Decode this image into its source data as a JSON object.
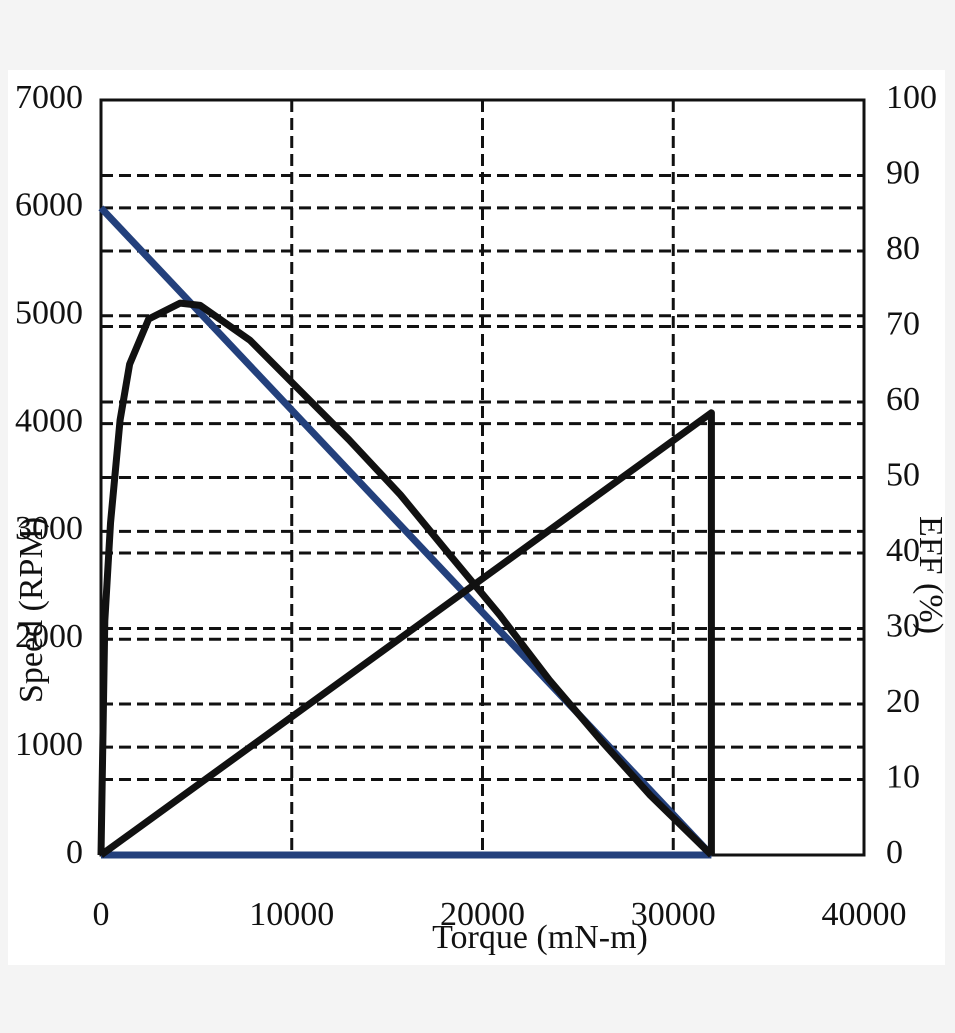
{
  "chart_data": {
    "type": "line",
    "x_label": "Torque (mN-m)",
    "y_label": "Speed (RPM)",
    "y2_label": "EFF (%)",
    "xlim": [
      0,
      40000
    ],
    "xticks": [
      0,
      10000,
      20000,
      30000,
      40000
    ],
    "ylim": [
      0,
      7000
    ],
    "yticks": [
      0,
      1000,
      2000,
      3000,
      4000,
      5000,
      6000,
      7000
    ],
    "y2lim": [
      0,
      100
    ],
    "y2ticks": [
      0,
      10,
      20,
      30,
      40,
      50,
      60,
      70,
      80,
      90,
      100
    ],
    "grid": "dashed",
    "series": [
      {
        "color": "#23407c",
        "x": [
          0,
          32000
        ],
        "values": [
          6000,
          0
        ]
      },
      {
        "color": "#23407c",
        "x": [
          0,
          32000
        ],
        "values": [
          0,
          0
        ]
      },
      {
        "color": "#111111",
        "x": [
          0,
          32000,
          32000
        ],
        "values": [
          0,
          4100,
          0
        ]
      },
      {
        "color": "#111111",
        "axis": "y2",
        "x": [
          0,
          200,
          500,
          1000,
          1500,
          2500,
          4150,
          5200,
          7800,
          10400,
          13000,
          15700,
          18300,
          20900,
          23500,
          26200,
          28800,
          32000
        ],
        "values": [
          0,
          31,
          44,
          57.6,
          65,
          71,
          73.1,
          72.8,
          68.2,
          61.6,
          55,
          47.7,
          39.7,
          31.8,
          23.2,
          15.2,
          7.9,
          0
        ]
      }
    ]
  }
}
